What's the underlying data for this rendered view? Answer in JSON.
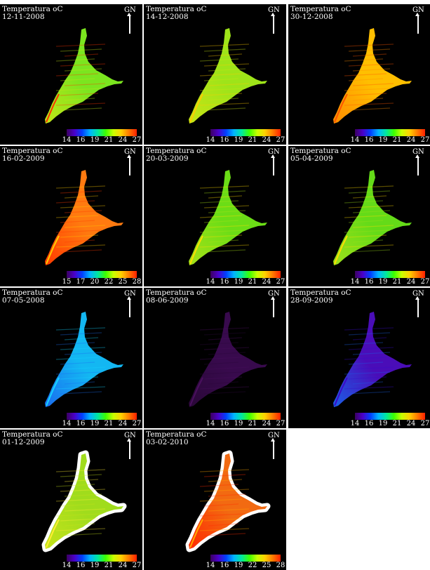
{
  "title_text": "Temperatura oC",
  "north_label": "GN",
  "panels": [
    {
      "date": "12-11-2008",
      "scale": [
        "14",
        "16",
        "19",
        "21",
        "24",
        "27"
      ],
      "lake_color": "#7be51f",
      "edge_color": "#c2e517",
      "accent": "#ff3300",
      "coast_white": false
    },
    {
      "date": "14-12-2008",
      "scale": [
        "14",
        "16",
        "19",
        "21",
        "24",
        "27"
      ],
      "lake_color": "#9ee419",
      "edge_color": "#c8e515",
      "accent": "#ffcc00",
      "coast_white": false
    },
    {
      "date": "30-12-2008",
      "scale": [
        "14",
        "16",
        "19",
        "21",
        "24",
        "27"
      ],
      "lake_color": "#ffbf00",
      "edge_color": "#ff8c00",
      "accent": "#ff5500",
      "coast_white": false
    },
    {
      "date": "16-02-2009",
      "scale": [
        "15",
        "17",
        "20",
        "22",
        "25",
        "28"
      ],
      "lake_color": "#ff7a10",
      "edge_color": "#ff3a00",
      "accent": "#ffcc00",
      "coast_white": false
    },
    {
      "date": "20-03-2009",
      "scale": [
        "14",
        "16",
        "19",
        "21",
        "24",
        "27"
      ],
      "lake_color": "#6bdd16",
      "edge_color": "#a8e118",
      "accent": "#ffdd00",
      "coast_white": false
    },
    {
      "date": "05-04-2009",
      "scale": [
        "14",
        "16",
        "19",
        "21",
        "24",
        "27"
      ],
      "lake_color": "#64db18",
      "edge_color": "#9ee01a",
      "accent": "#ffdd00",
      "coast_white": false
    },
    {
      "date": "07-05-2008",
      "scale": [
        "14",
        "16",
        "19",
        "21",
        "24",
        "27"
      ],
      "lake_color": "#13b7f2",
      "edge_color": "#1a6cf0",
      "accent": "#15d4ff",
      "coast_white": false
    },
    {
      "date": "08-06-2009",
      "scale": [
        "14",
        "16",
        "19",
        "21",
        "24",
        "27"
      ],
      "lake_color": "#380a4d",
      "edge_color": "#2a0838",
      "accent": "#4a0f5e",
      "coast_white": false
    },
    {
      "date": "28-09-2009",
      "scale": [
        "14",
        "16",
        "19",
        "21",
        "24",
        "27"
      ],
      "lake_color": "#4a0db8",
      "edge_color": "#1a60e8",
      "accent": "#3a0cc8",
      "coast_white": false
    },
    {
      "date": "01-12-2009",
      "scale": [
        "14",
        "16",
        "19",
        "21",
        "24",
        "27"
      ],
      "lake_color": "#a0dc1c",
      "edge_color": "#c5e31a",
      "accent": "#ffee33",
      "coast_white": true
    },
    {
      "date": "03-02-2010",
      "scale": [
        "14",
        "16",
        "19",
        "22",
        "25",
        "28"
      ],
      "lake_color": "#f26a12",
      "edge_color": "#ff2a00",
      "accent": "#ffaa00",
      "coast_white": true
    }
  ],
  "colorbar_colors": [
    "#3b0060",
    "#4b00c8",
    "#0040ff",
    "#00b4ff",
    "#00e8a0",
    "#3cff00",
    "#c8ff00",
    "#ffd000",
    "#ff7a00",
    "#ff2000"
  ]
}
